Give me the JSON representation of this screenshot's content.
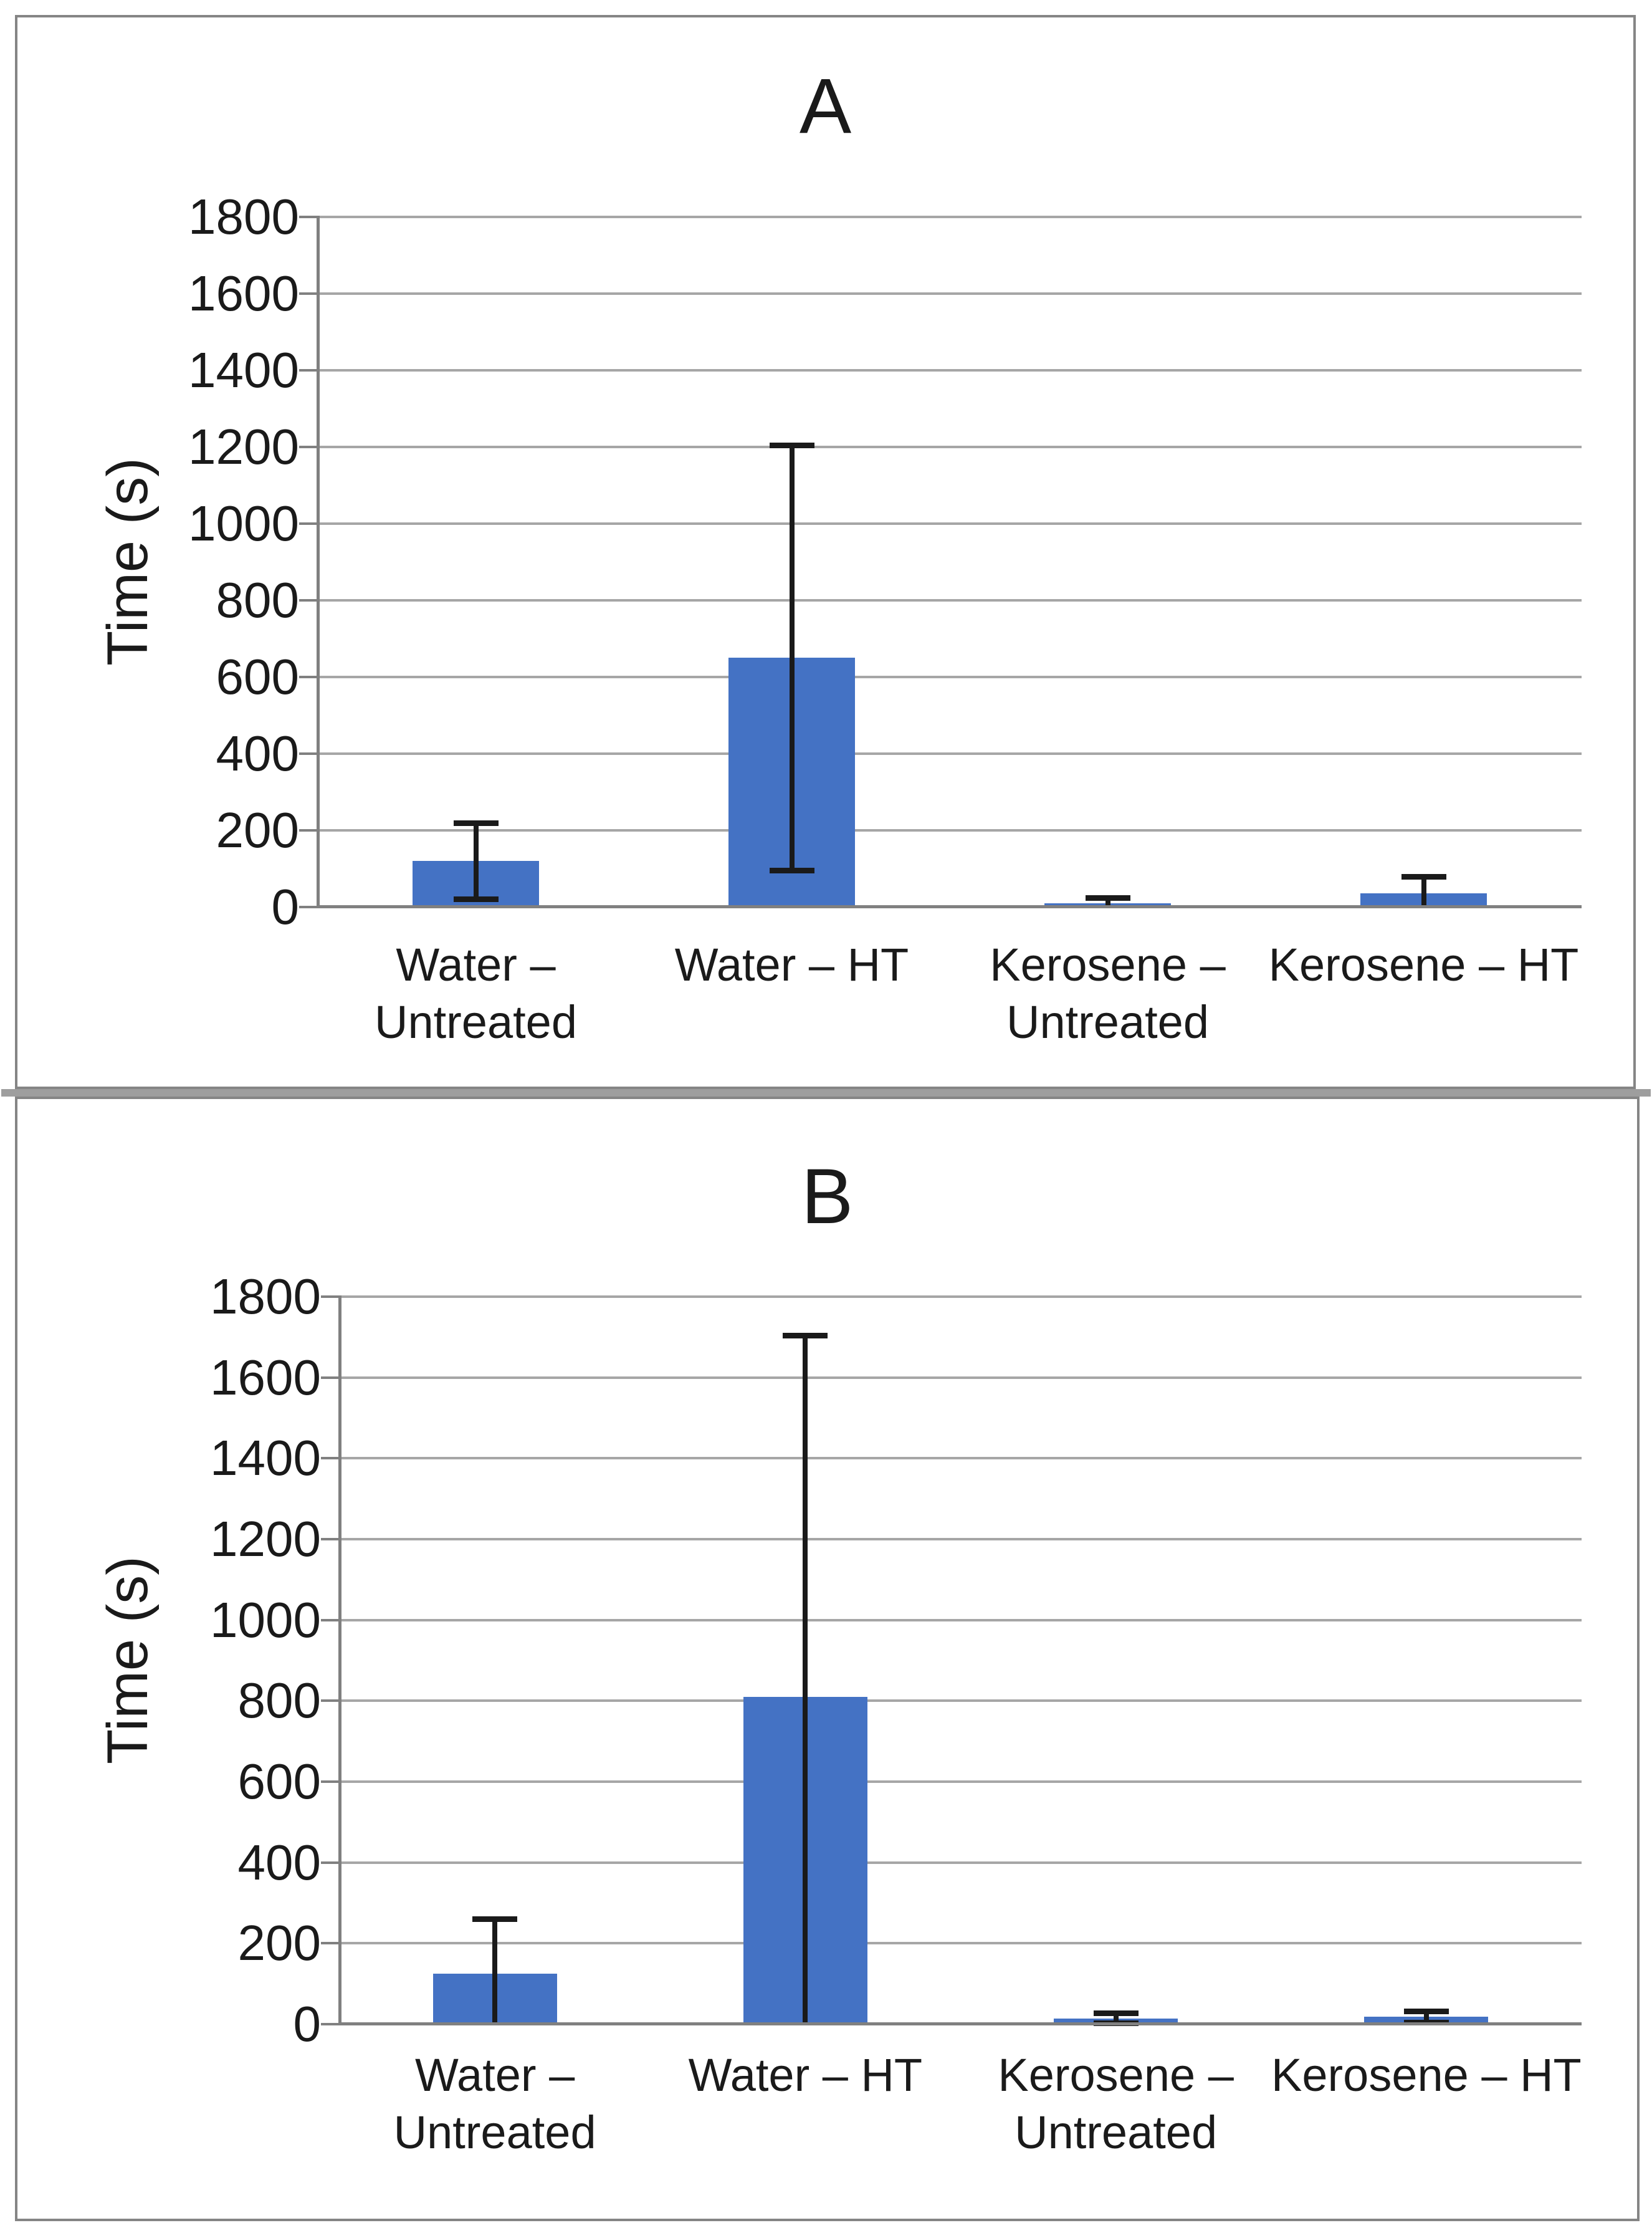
{
  "figure": {
    "panel_count": 2,
    "panel_labels": [
      "A",
      "B"
    ]
  },
  "colors": {
    "bar": "#4472C4",
    "gridline": "#A6A6A6",
    "axis": "#808080",
    "error_bar": "#1A1A1A",
    "panel_border": "#858585",
    "divider": "#9E9E9E",
    "text": "#1A1A1A",
    "background": "#FFFFFF"
  },
  "chart_data": [
    {
      "type": "bar",
      "title": "A",
      "xlabel": "",
      "ylabel": "Time (s)",
      "categories": [
        [
          "Water –",
          "Untreated"
        ],
        [
          "Water – HT"
        ],
        [
          "Kerosene –",
          "Untreated"
        ],
        [
          "Kerosene – HT"
        ]
      ],
      "values": [
        120,
        650,
        10,
        35
      ],
      "errors": [
        100,
        555,
        15,
        45
      ],
      "error_caps_upper": [
        220,
        1205,
        25,
        80
      ],
      "error_caps_lower": [
        20,
        95,
        0,
        0
      ],
      "ylim": [
        0,
        1800
      ],
      "ytick_step": 200,
      "yticks": [
        0,
        200,
        400,
        600,
        800,
        1000,
        1200,
        1400,
        1600,
        1800
      ],
      "grid": true,
      "legend": false,
      "bar_color": "#4472C4"
    },
    {
      "type": "bar",
      "title": "B",
      "xlabel": "",
      "ylabel": "Time (s)",
      "categories": [
        [
          "Water –",
          "Untreated"
        ],
        [
          "Water – HT"
        ],
        [
          "Kerosene –",
          "Untreated"
        ],
        [
          "Kerosene – HT"
        ]
      ],
      "values": [
        125,
        810,
        14,
        18
      ],
      "errors": [
        135,
        895,
        13,
        15
      ],
      "error_caps_upper": [
        260,
        1705,
        27,
        33
      ],
      "error_caps_lower": [
        0,
        0,
        1,
        3
      ],
      "ylim": [
        0,
        1800
      ],
      "ytick_step": 200,
      "yticks": [
        0,
        200,
        400,
        600,
        800,
        1000,
        1200,
        1400,
        1600,
        1800
      ],
      "grid": true,
      "legend": false,
      "bar_color": "#4472C4"
    }
  ]
}
